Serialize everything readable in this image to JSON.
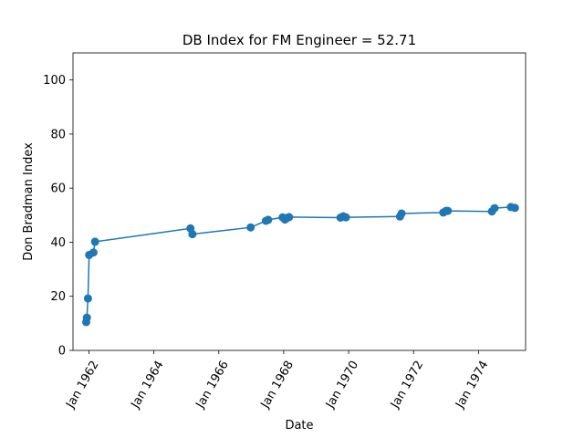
{
  "chart_data": {
    "type": "line",
    "title": "DB Index for FM Engineer = 52.71",
    "xlabel": "Date",
    "ylabel": "Don Bradman Index",
    "ylim": [
      0,
      110
    ],
    "yticks": [
      0,
      20,
      40,
      60,
      80,
      100
    ],
    "xlim": [
      "1961-07-05",
      "1975-06-15"
    ],
    "xticks": [
      "1962-01-01",
      "1964-01-01",
      "1966-01-01",
      "1968-01-01",
      "1970-01-01",
      "1972-01-01",
      "1974-01-01"
    ],
    "xtick_labels": [
      "Jan 1962",
      "Jan 1964",
      "Jan 1966",
      "Jan 1968",
      "Jan 1970",
      "Jan 1972",
      "Jan 1974"
    ],
    "grid": false,
    "color": "#1f77b4",
    "series": [
      {
        "x": [
          "1961-12-01",
          "1961-12-08",
          "1961-12-20",
          "1962-01-03",
          "1962-02-20",
          "1962-03-10",
          "1965-02-15",
          "1965-03-10",
          "1966-12-25",
          "1967-06-15",
          "1967-07-10",
          "1967-12-20",
          "1968-01-15",
          "1968-02-10",
          "1968-03-01",
          "1969-10-01",
          "1969-11-01",
          "1969-12-01",
          "1971-08-01",
          "1971-08-20",
          "1972-12-01",
          "1973-01-01",
          "1973-01-20",
          "1974-06-01",
          "1974-07-01",
          "1975-01-01",
          "1975-02-15"
        ],
        "y": [
          10.5,
          12.1,
          19.2,
          35.3,
          36.2,
          40.2,
          45.1,
          43.0,
          45.5,
          47.9,
          48.3,
          49.2,
          48.4,
          49.0,
          49.3,
          49.1,
          49.6,
          49.2,
          49.5,
          50.6,
          51.0,
          51.6,
          51.6,
          51.4,
          52.6,
          53.0,
          52.7
        ]
      }
    ]
  }
}
